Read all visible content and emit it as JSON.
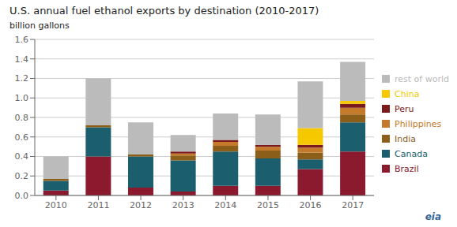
{
  "chart_data": {
    "type": "bar",
    "title": "U.S. annual fuel ethanol exports by destination (2010-2017)",
    "subtitle": "billion gallons",
    "annotations": [
      "eia"
    ],
    "categories": [
      "2010",
      "2011",
      "2012",
      "2013",
      "2014",
      "2015",
      "2016",
      "2017"
    ],
    "series": [
      {
        "name": "Brazil",
        "color": "#8B1A2E",
        "values": [
          0.05,
          0.4,
          0.08,
          0.04,
          0.1,
          0.1,
          0.27,
          0.45
        ]
      },
      {
        "name": "Canada",
        "color": "#1B5E6E",
        "values": [
          0.1,
          0.3,
          0.32,
          0.32,
          0.35,
          0.28,
          0.1,
          0.3
        ]
      },
      {
        "name": "India",
        "color": "#8B5E1A",
        "values": [
          0.02,
          0.02,
          0.02,
          0.05,
          0.06,
          0.08,
          0.07,
          0.08
        ]
      },
      {
        "name": "Philippines",
        "color": "#C47A2A",
        "values": [
          0.0,
          0.0,
          0.0,
          0.02,
          0.04,
          0.04,
          0.05,
          0.07
        ]
      },
      {
        "name": "Peru",
        "color": "#7A1A1A",
        "values": [
          0.0,
          0.0,
          0.0,
          0.02,
          0.02,
          0.02,
          0.03,
          0.04
        ]
      },
      {
        "name": "China",
        "color": "#F5C800",
        "values": [
          0.0,
          0.0,
          0.0,
          0.0,
          0.0,
          0.0,
          0.17,
          0.03
        ]
      },
      {
        "name": "rest of world",
        "color": "#BBBBBB",
        "values": [
          0.23,
          0.48,
          0.33,
          0.17,
          0.27,
          0.31,
          0.48,
          0.4
        ]
      }
    ],
    "ylim": [
      0,
      1.6
    ],
    "yticks": [
      {
        "value": 0,
        "label": "0.0"
      },
      0.2,
      0.4,
      0.6,
      0.8,
      {
        "value": 1,
        "label": "1.0"
      },
      1.2,
      1.4,
      1.6
    ],
    "stacked": true,
    "grid": true,
    "legend": "right"
  }
}
